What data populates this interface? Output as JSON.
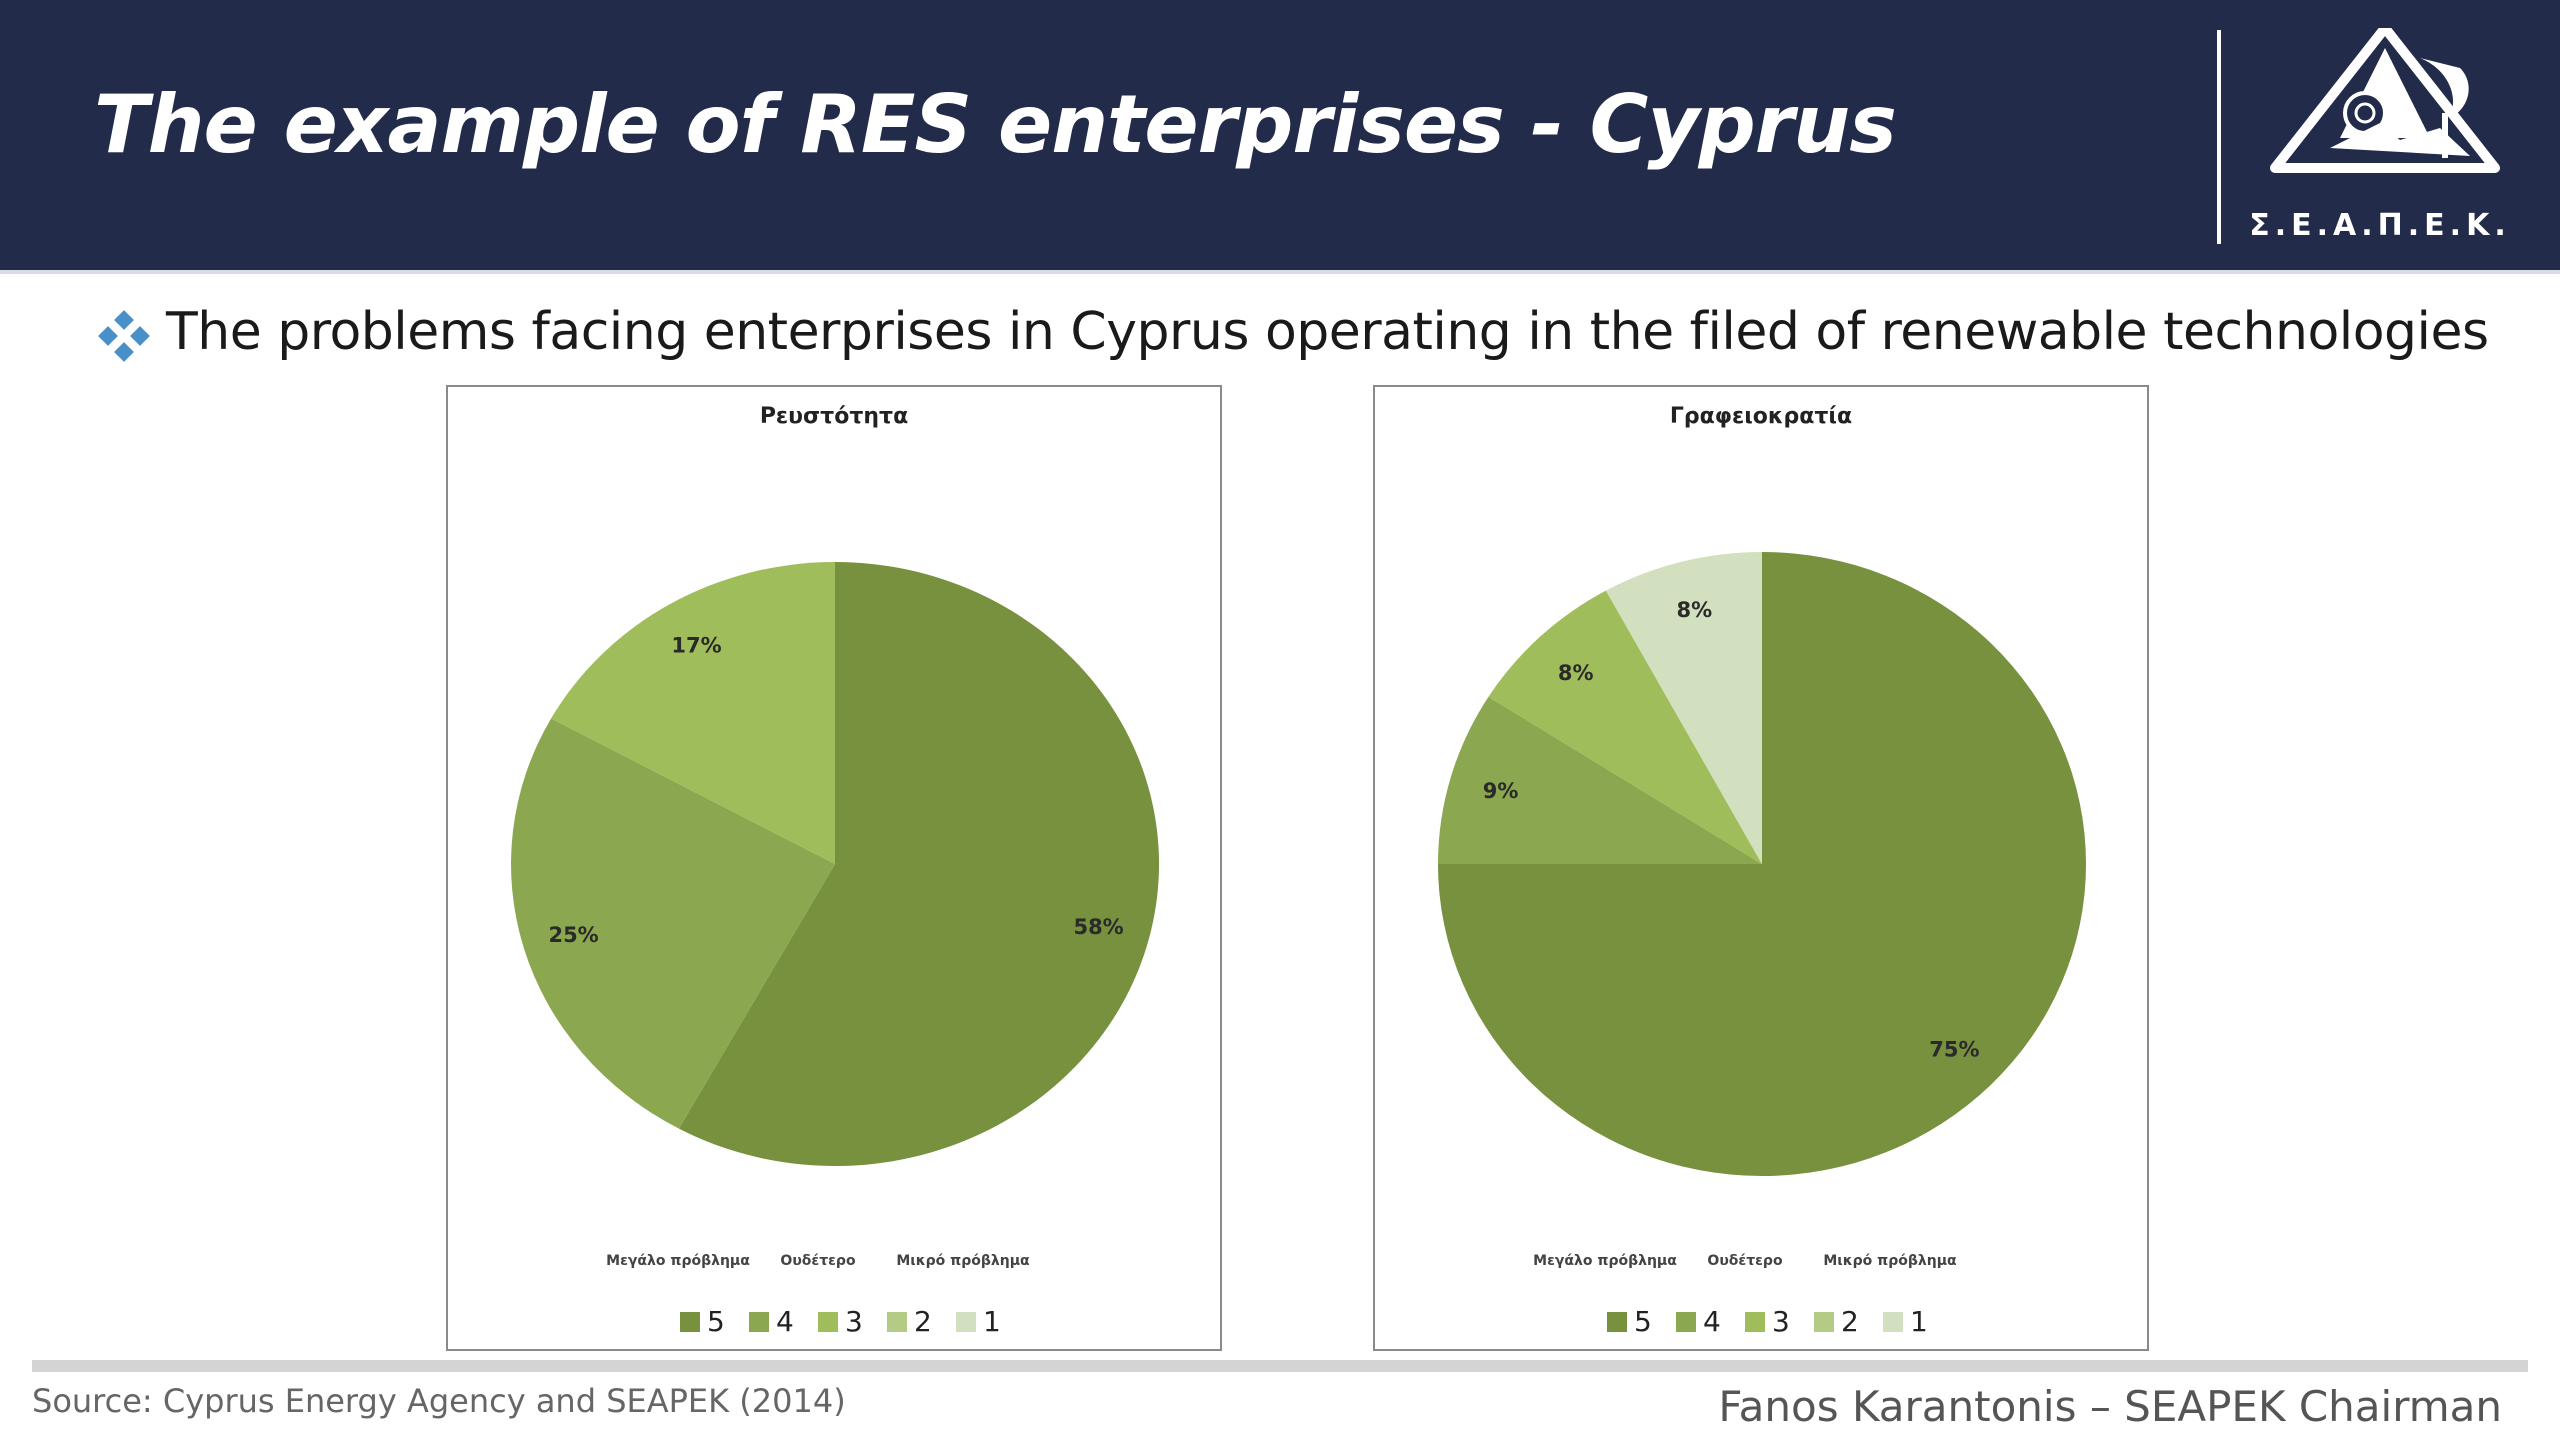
{
  "header": {
    "title": "The example of RES enterprises - Cyprus",
    "logo_text": "Σ.Ε.Α.Π.Ε.Κ."
  },
  "bullet": {
    "icon": "diamond-cluster-icon",
    "text": "The problems facing enterprises in Cyprus operating in the filed of renewable technologies"
  },
  "colors": {
    "header_bg": "#222b4a",
    "slice_5": "#77913f",
    "slice_4": "#8ba74f",
    "slice_3": "#9fbd5a",
    "slice_2": "#b4cb86",
    "slice_1": "#d2e0bf"
  },
  "chart_data": [
    {
      "type": "pie",
      "title": "Ρευστότητα",
      "categories": [
        "5",
        "4",
        "3",
        "2",
        "1"
      ],
      "values": [
        58,
        25,
        17,
        0,
        0
      ],
      "data_labels": [
        "58%",
        "25%",
        "17%",
        "",
        ""
      ],
      "scale_labels": [
        "Μεγάλο πρόβλημα",
        "Ουδέτερο",
        "Μικρό πρόβλημα"
      ],
      "legend": [
        "5",
        "4",
        "3",
        "2",
        "1"
      ],
      "legend_position": "bottom"
    },
    {
      "type": "pie",
      "title": "Γραφειοκρατία",
      "categories": [
        "5",
        "4",
        "3",
        "2",
        "1"
      ],
      "values": [
        75,
        9,
        8,
        0,
        8
      ],
      "data_labels": [
        "75%",
        "9%",
        "8%",
        "",
        "8%"
      ],
      "scale_labels": [
        "Μεγάλο πρόβλημα",
        "Ουδέτερο",
        "Μικρό πρόβλημα"
      ],
      "legend": [
        "5",
        "4",
        "3",
        "2",
        "1"
      ],
      "legend_position": "bottom"
    }
  ],
  "footer": {
    "source": "Source: Cyprus Energy Agency and SEAPEK (2014)",
    "author": "Fanos Karantonis – SEAPEK Chairman"
  }
}
